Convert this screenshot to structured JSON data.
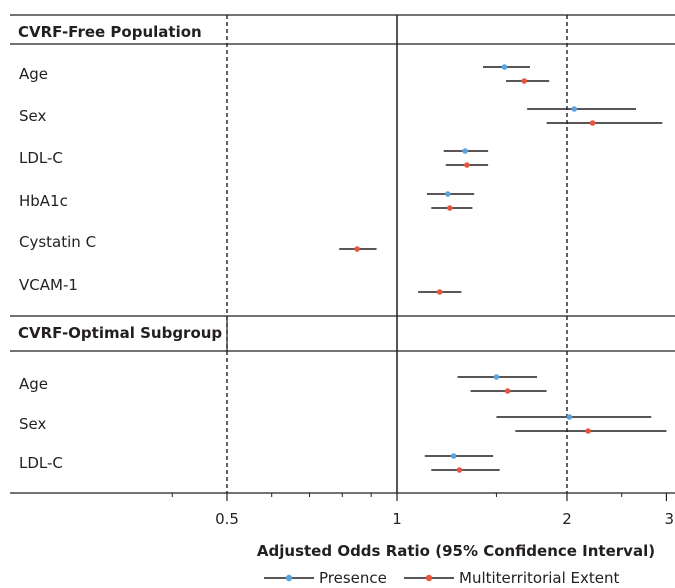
{
  "chart_data": {
    "type": "forest",
    "xlabel": "Adjusted Odds Ratio (95% Confidence Interval)",
    "xscale": "log",
    "xlim": [
      0.33,
      3.0
    ],
    "ticks": [
      {
        "value": 0.5,
        "label": "0.5"
      },
      {
        "value": 1,
        "label": "1"
      },
      {
        "value": 2,
        "label": "2"
      },
      {
        "value": 3,
        "label": "3"
      }
    ],
    "minor_ticks": [
      0.4,
      0.6,
      0.7,
      0.8,
      0.9,
      1.5,
      2.5
    ],
    "reference_lines": [
      0.5,
      1,
      2
    ],
    "legend": [
      {
        "name": "Presence",
        "color": "#5ba3dd"
      },
      {
        "name": "Multiterritorial Extent",
        "color": "#e8553f"
      }
    ],
    "sections": [
      {
        "title": "CVRF-Free Population",
        "rows": [
          {
            "label": "Age",
            "presence": {
              "or": 1.55,
              "lo": 1.42,
              "hi": 1.72
            },
            "extent": {
              "or": 1.68,
              "lo": 1.56,
              "hi": 1.86
            }
          },
          {
            "label": "Sex",
            "presence": {
              "or": 2.06,
              "lo": 1.7,
              "hi": 2.65
            },
            "extent": {
              "or": 2.22,
              "lo": 1.84,
              "hi": 2.95
            }
          },
          {
            "label": "LDL-C",
            "presence": {
              "or": 1.32,
              "lo": 1.21,
              "hi": 1.45
            },
            "extent": {
              "or": 1.33,
              "lo": 1.22,
              "hi": 1.45
            }
          },
          {
            "label": "HbA1c",
            "presence": {
              "or": 1.23,
              "lo": 1.13,
              "hi": 1.37
            },
            "extent": {
              "or": 1.24,
              "lo": 1.15,
              "hi": 1.36
            }
          },
          {
            "label": "Cystatin C",
            "extent": {
              "or": 0.85,
              "lo": 0.79,
              "hi": 0.92
            }
          },
          {
            "label": "VCAM-1",
            "extent": {
              "or": 1.19,
              "lo": 1.09,
              "hi": 1.3
            }
          }
        ]
      },
      {
        "title": "CVRF-Optimal Subgroup",
        "rows": [
          {
            "label": "Age",
            "presence": {
              "or": 1.5,
              "lo": 1.28,
              "hi": 1.77
            },
            "extent": {
              "or": 1.57,
              "lo": 1.35,
              "hi": 1.84
            }
          },
          {
            "label": "Sex",
            "presence": {
              "or": 2.02,
              "lo": 1.5,
              "hi": 2.82
            },
            "extent": {
              "or": 2.18,
              "lo": 1.62,
              "hi": 3.0
            }
          },
          {
            "label": "LDL-C",
            "presence": {
              "or": 1.26,
              "lo": 1.12,
              "hi": 1.48
            },
            "extent": {
              "or": 1.29,
              "lo": 1.15,
              "hi": 1.52
            }
          }
        ]
      }
    ]
  }
}
